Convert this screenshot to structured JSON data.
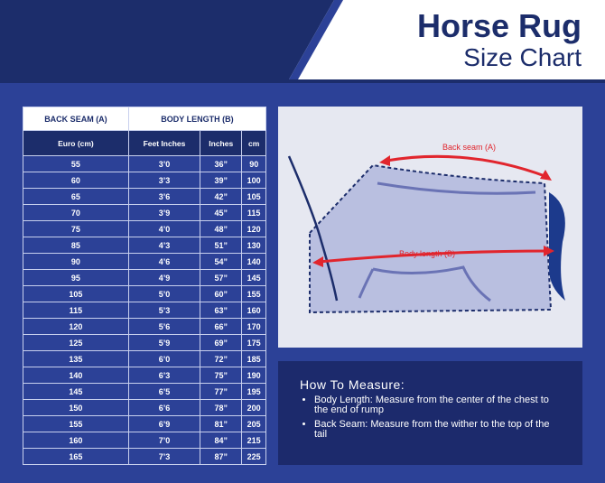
{
  "header": {
    "title": "Horse Rug",
    "subtitle": "Size Chart"
  },
  "table": {
    "group_headers": [
      "BACK SEAM (A)",
      "BODY LENGTH (B)"
    ],
    "columns": [
      "Euro (cm)",
      "Feet Inches",
      "Inches",
      "cm"
    ],
    "rows": [
      [
        55,
        "3’0",
        "36”",
        90
      ],
      [
        60,
        "3’3",
        "39”",
        100
      ],
      [
        65,
        "3’6",
        "42”",
        105
      ],
      [
        70,
        "3’9",
        "45”",
        115
      ],
      [
        75,
        "4’0",
        "48”",
        120
      ],
      [
        85,
        "4’3",
        "51”",
        130
      ],
      [
        90,
        "4’6",
        "54”",
        140
      ],
      [
        95,
        "4’9",
        "57”",
        145
      ],
      [
        105,
        "5’0",
        "60”",
        155
      ],
      [
        115,
        "5’3",
        "63”",
        160
      ],
      [
        120,
        "5’6",
        "66”",
        170
      ],
      [
        125,
        "5’9",
        "69”",
        175
      ],
      [
        135,
        "6’0",
        "72”",
        185
      ],
      [
        140,
        "6’3",
        "75”",
        190
      ],
      [
        145,
        "6’5",
        "77”",
        195
      ],
      [
        150,
        "6’6",
        "78”",
        200
      ],
      [
        155,
        "6’9",
        "81”",
        205
      ],
      [
        160,
        "7’0",
        "84”",
        215
      ],
      [
        165,
        "7’3",
        "87”",
        225
      ]
    ]
  },
  "diagram": {
    "back_seam_label": "Back seam (A)",
    "body_length_label": "Body length (B)"
  },
  "how_to_measure": {
    "title": "How To Measure:",
    "items": [
      "Body Length: Measure from the center of the chest to the end of rump",
      "Back Seam: Measure from the wither to the top of the tail"
    ]
  }
}
